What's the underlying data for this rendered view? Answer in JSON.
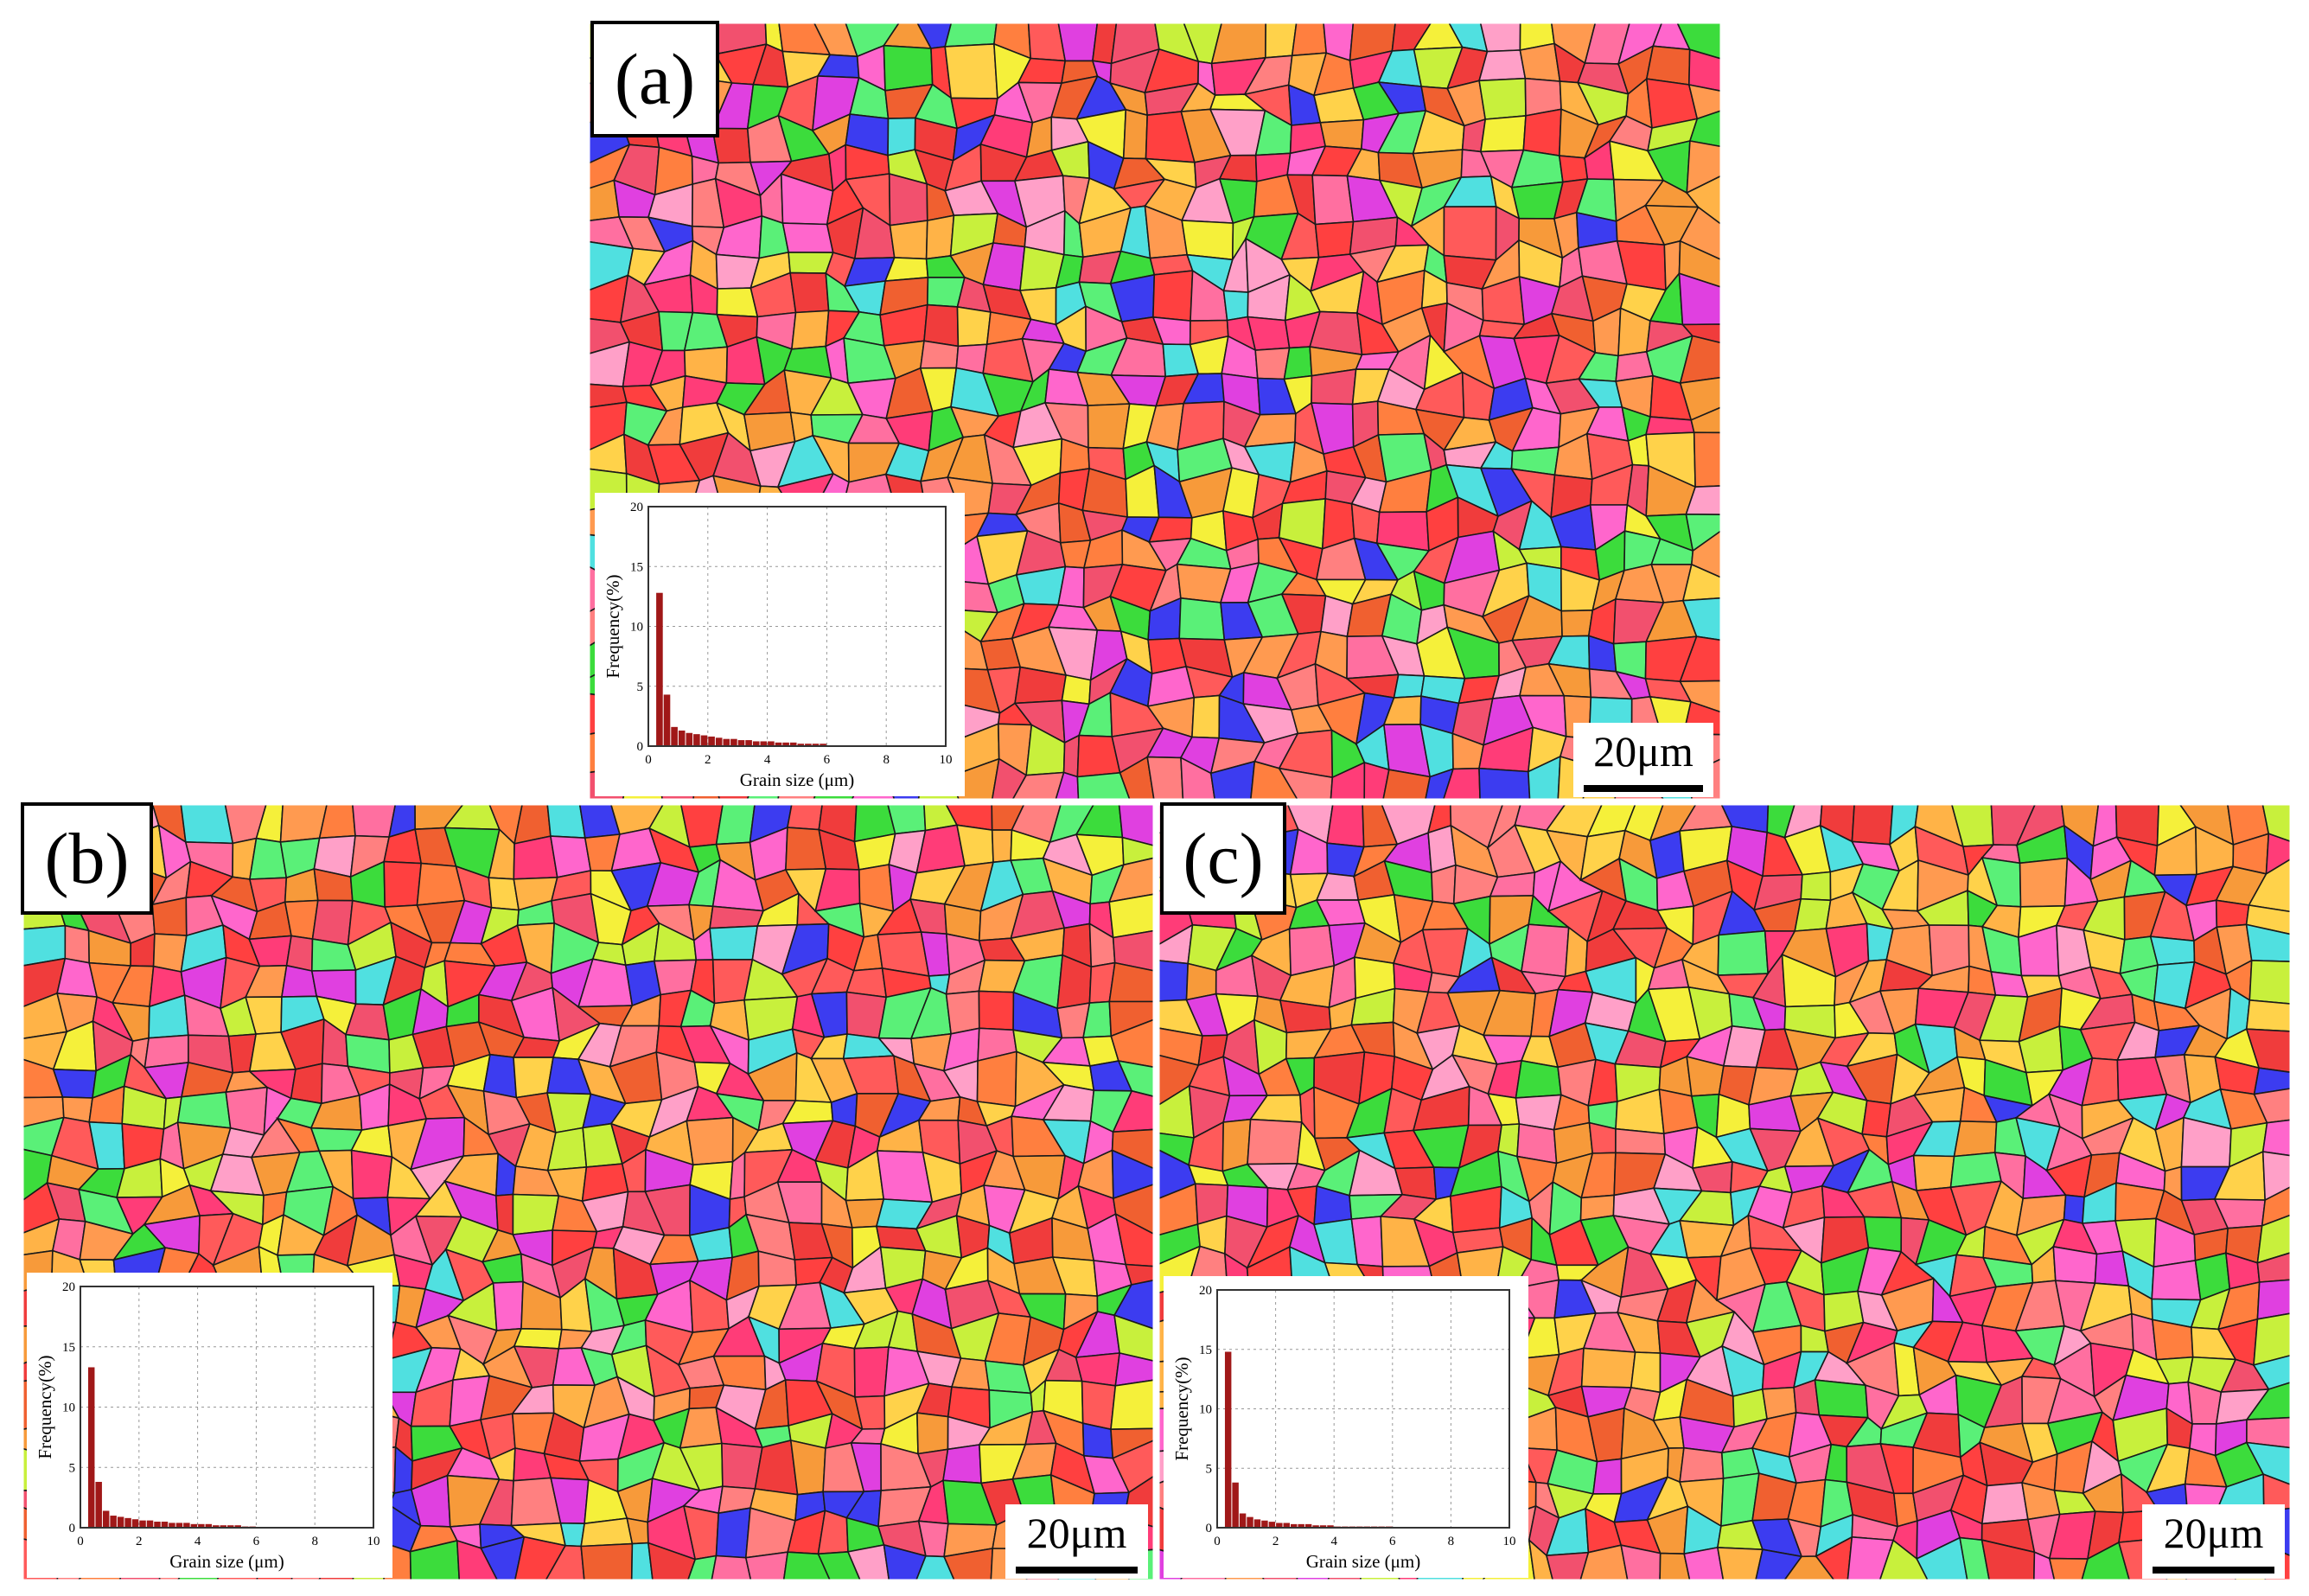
{
  "panels": [
    {
      "label": "(a)",
      "scale_bar": "20μm"
    },
    {
      "label": "(b)",
      "scale_bar": "20μm"
    },
    {
      "label": "(c)",
      "scale_bar": "20μm"
    }
  ],
  "chart_data": [
    {
      "type": "histogram",
      "xlabel": "Grain size (μm)",
      "ylabel": "Frequency(%)",
      "color": "#a01818",
      "grid": true,
      "bins": [
        0,
        0.25,
        0.5,
        0.75,
        1,
        1.25,
        1.5,
        1.75,
        2,
        2.25,
        2.5,
        2.75,
        3,
        3.25,
        3.5,
        3.75,
        4,
        4.25,
        4.5,
        4.75,
        5,
        5.25,
        5.5,
        5.75,
        6
      ],
      "values": [
        0,
        12.8,
        4.3,
        1.6,
        1.3,
        1.1,
        1,
        0.9,
        0.8,
        0.7,
        0.6,
        0.6,
        0.5,
        0.5,
        0.4,
        0.4,
        0.4,
        0.3,
        0.3,
        0.3,
        0.2,
        0.2,
        0.2,
        0.2
      ],
      "xlim": [
        0,
        10
      ],
      "ylim": [
        0,
        20
      ],
      "xticks": [
        0,
        2,
        4,
        6,
        8,
        10
      ],
      "yticks": [
        0,
        5,
        10,
        15,
        20
      ]
    },
    {
      "type": "histogram",
      "xlabel": "Grain size (μm)",
      "ylabel": "Frequency(%)",
      "color": "#a01818",
      "grid": true,
      "bins": [
        0,
        0.25,
        0.5,
        0.75,
        1,
        1.25,
        1.5,
        1.75,
        2,
        2.25,
        2.5,
        2.75,
        3,
        3.25,
        3.5,
        3.75,
        4,
        4.25,
        4.5,
        4.75,
        5,
        5.25,
        5.5,
        5.75,
        6
      ],
      "values": [
        0,
        13.3,
        3.8,
        1.4,
        1,
        0.9,
        0.8,
        0.7,
        0.6,
        0.6,
        0.5,
        0.5,
        0.4,
        0.4,
        0.4,
        0.3,
        0.3,
        0.3,
        0.2,
        0.2,
        0.2,
        0.2,
        0.1,
        0.1
      ],
      "xlim": [
        0,
        10
      ],
      "ylim": [
        0,
        20
      ],
      "xticks": [
        0,
        2,
        4,
        6,
        8,
        10
      ],
      "yticks": [
        0,
        5,
        10,
        15,
        20
      ]
    },
    {
      "type": "histogram",
      "xlabel": "Grain size (μm)",
      "ylabel": "Frequency(%)",
      "color": "#a01818",
      "grid": true,
      "bins": [
        0,
        0.25,
        0.5,
        0.75,
        1,
        1.25,
        1.5,
        1.75,
        2,
        2.25,
        2.5,
        2.75,
        3,
        3.25,
        3.5,
        3.75,
        4,
        4.25,
        4.5,
        4.75,
        5,
        5.25,
        5.5,
        5.75,
        6
      ],
      "values": [
        0,
        14.8,
        3.8,
        1.2,
        0.9,
        0.7,
        0.6,
        0.5,
        0.4,
        0.4,
        0.3,
        0.3,
        0.3,
        0.2,
        0.2,
        0.2,
        0.1,
        0.1,
        0.1,
        0.1,
        0.1,
        0.1,
        0.1,
        0.1
      ],
      "xlim": [
        0,
        10
      ],
      "ylim": [
        0,
        20
      ],
      "xticks": [
        0,
        2,
        4,
        6,
        8,
        10
      ],
      "yticks": [
        0,
        5,
        10,
        15,
        20
      ]
    }
  ]
}
